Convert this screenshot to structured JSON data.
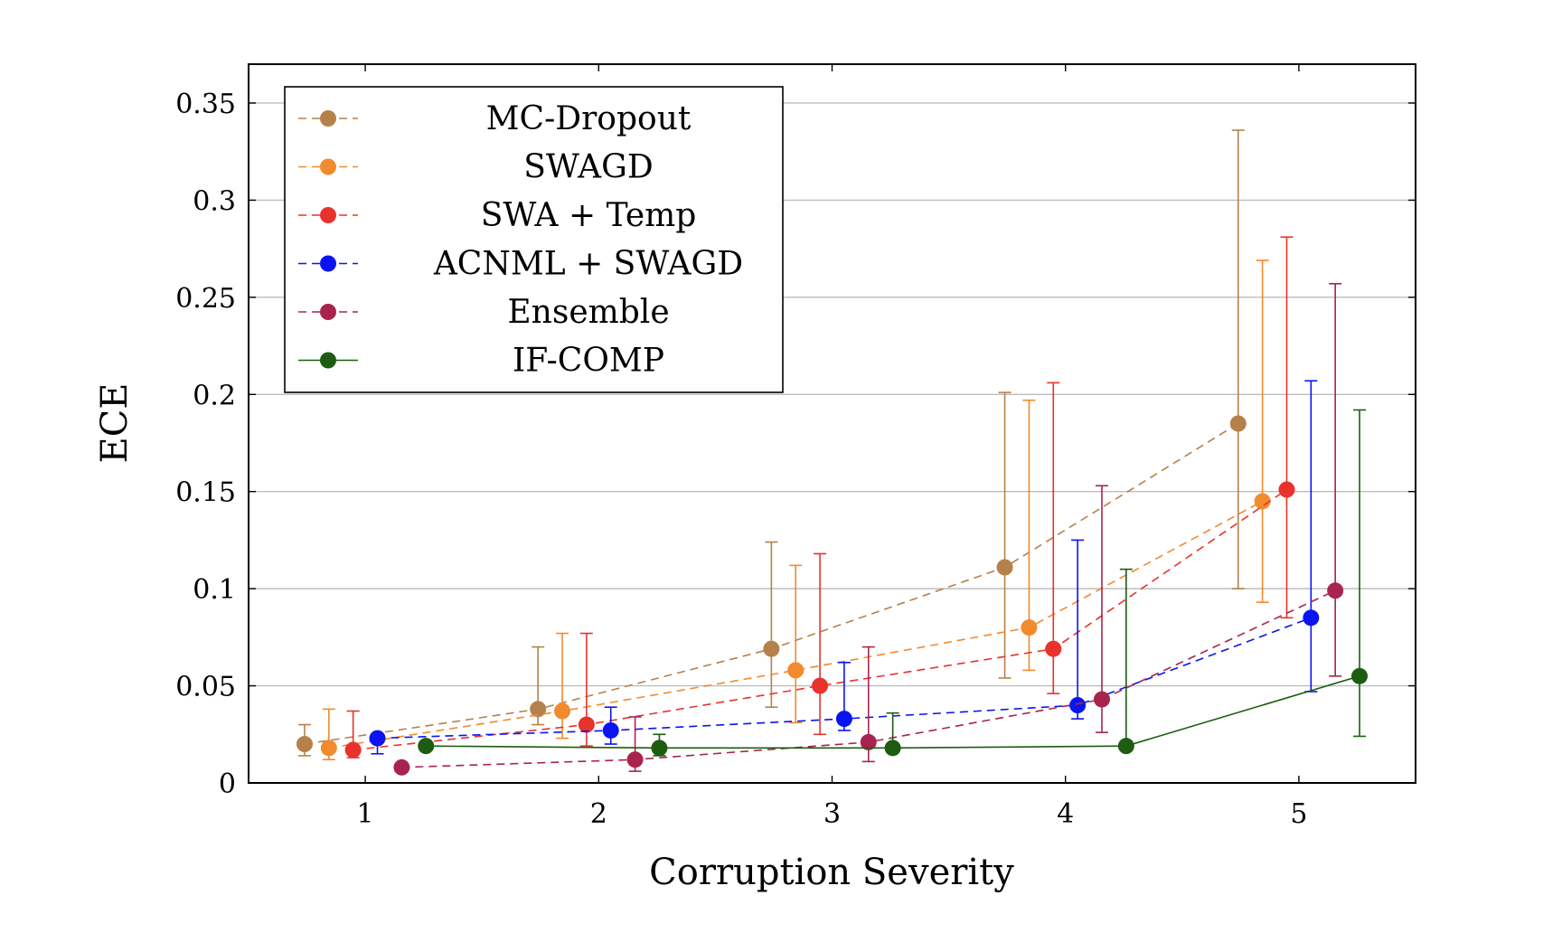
{
  "chart_data": {
    "type": "scatter",
    "xlabel": "Corruption Severity",
    "ylabel": "ECE",
    "x_ticks": [
      "1",
      "2",
      "3",
      "4",
      "5"
    ],
    "y_ticks": [
      "0",
      "0.05",
      "0.1",
      "0.15",
      "0.2",
      "0.25",
      "0.3",
      "0.35"
    ],
    "xlim": [
      0.5,
      5.5
    ],
    "ylim": [
      0,
      0.37
    ],
    "grid": "horizontal",
    "legend_position": "top-left",
    "series": [
      {
        "name": "MC-Dropout",
        "color": "#b5814a",
        "style": "dashed",
        "x": [
          1,
          2,
          3,
          4,
          5
        ],
        "y": [
          0.02,
          0.038,
          0.069,
          0.111,
          0.185
        ],
        "err_low": [
          0.014,
          0.03,
          0.039,
          0.054,
          0.1
        ],
        "err_high": [
          0.03,
          0.07,
          0.124,
          0.201,
          0.336
        ]
      },
      {
        "name": "SWAGD",
        "color": "#f28a2e",
        "style": "dashed",
        "x": [
          1,
          2,
          3,
          4,
          5
        ],
        "y": [
          0.018,
          0.037,
          0.058,
          0.08,
          0.145
        ],
        "err_low": [
          0.012,
          0.023,
          0.031,
          0.058,
          0.093
        ],
        "err_high": [
          0.038,
          0.077,
          0.112,
          0.197,
          0.269
        ]
      },
      {
        "name": "SWA + Temp",
        "color": "#e8322b",
        "style": "dashed",
        "x": [
          1,
          2,
          3,
          4,
          5
        ],
        "y": [
          0.017,
          0.03,
          0.05,
          0.069,
          0.151
        ],
        "err_low": [
          0.013,
          0.019,
          0.025,
          0.046,
          0.085
        ],
        "err_high": [
          0.037,
          0.077,
          0.118,
          0.206,
          0.281
        ]
      },
      {
        "name": "ACNML + SWAGD",
        "color": "#0a14f0",
        "style": "dashed",
        "x": [
          1,
          2,
          3,
          4,
          5
        ],
        "y": [
          0.023,
          0.027,
          0.033,
          0.04,
          0.085
        ],
        "err_low": [
          0.015,
          0.02,
          0.027,
          0.033,
          0.047
        ],
        "err_high": [
          0.024,
          0.039,
          0.062,
          0.125,
          0.207
        ]
      },
      {
        "name": "Ensemble",
        "color": "#a8244e",
        "style": "dashed",
        "x": [
          1,
          2,
          3,
          4,
          5
        ],
        "y": [
          0.008,
          0.012,
          0.021,
          0.043,
          0.099
        ],
        "err_low": [
          0.007,
          0.006,
          0.011,
          0.026,
          0.055
        ],
        "err_high": [
          0.009,
          0.034,
          0.07,
          0.153,
          0.257
        ]
      },
      {
        "name": "IF-COMP",
        "color": "#1e5c12",
        "style": "solid",
        "x": [
          1,
          2,
          3,
          4,
          5
        ],
        "y": [
          0.019,
          0.018,
          0.018,
          0.019,
          0.055
        ],
        "err_low": [
          0.019,
          0.014,
          0.017,
          0.017,
          0.024
        ],
        "err_high": [
          0.019,
          0.025,
          0.036,
          0.11,
          0.192
        ]
      }
    ]
  }
}
